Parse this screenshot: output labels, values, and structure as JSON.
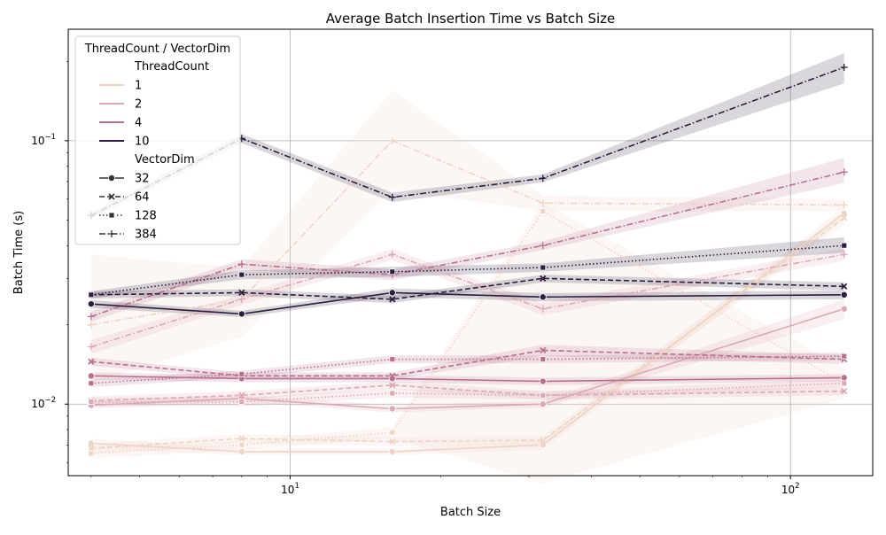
{
  "chart_data": {
    "type": "line",
    "title": "Average Batch Insertion Time vs Batch Size",
    "xlabel": "Batch Size",
    "ylabel": "Batch Time (s)",
    "xscale": "log",
    "yscale": "log",
    "xlim": [
      3.6,
      146
    ],
    "ylim": [
      0.00535,
      0.265
    ],
    "x_ticks": [
      {
        "value": 10,
        "label": "10",
        "base": "10",
        "exp": "1"
      },
      {
        "value": 100,
        "label": "100",
        "base": "10",
        "exp": "2"
      }
    ],
    "y_ticks": [
      {
        "value": 0.01,
        "label": "0.01",
        "base": "10",
        "exp": "−2"
      },
      {
        "value": 0.1,
        "label": "0.1",
        "base": "10",
        "exp": "−1"
      }
    ],
    "grid": true,
    "legend": {
      "title": "ThreadCount / VectorDim",
      "placement": "top-left",
      "hue_title": "ThreadCount",
      "hue_entries": [
        {
          "label": "1",
          "color": "#eed4c5"
        },
        {
          "label": "2",
          "color": "#dba9b4"
        },
        {
          "label": "4",
          "color": "#b7718f"
        },
        {
          "label": "10",
          "color": "#2d1e3e"
        }
      ],
      "style_title": "VectorDim",
      "style_entries": [
        {
          "label": "32",
          "dash": "solid",
          "marker": "circle"
        },
        {
          "label": "64",
          "dash": "dashed",
          "marker": "x"
        },
        {
          "label": "128",
          "dash": "dotted",
          "marker": "square"
        },
        {
          "label": "384",
          "dash": "dashdot",
          "marker": "plus"
        }
      ]
    },
    "x": [
      4,
      8,
      16,
      32,
      128
    ],
    "series": [
      {
        "thread_count": "1",
        "vector_dim": "32",
        "values": [
          0.0071,
          0.0066,
          0.0066,
          0.007,
          0.053
        ],
        "ci_low": [
          0.0068,
          0.0064,
          0.0064,
          0.0067,
          0.05
        ],
        "ci_high": [
          0.0074,
          0.0068,
          0.0068,
          0.0073,
          0.056
        ]
      },
      {
        "thread_count": "1",
        "vector_dim": "64",
        "values": [
          0.0068,
          0.0074,
          0.0072,
          0.0073,
          0.051
        ],
        "ci_low": [
          0.0065,
          0.0071,
          0.0069,
          0.007,
          0.048
        ],
        "ci_high": [
          0.0071,
          0.0077,
          0.0075,
          0.0076,
          0.054
        ]
      },
      {
        "thread_count": "1",
        "vector_dim": "128",
        "values": [
          0.0065,
          0.007,
          0.0078,
          0.054,
          0.012
        ],
        "ci_low": [
          0.0062,
          0.0067,
          0.0074,
          0.005,
          0.0105
        ],
        "ci_high": [
          0.0068,
          0.0073,
          0.0082,
          0.058,
          0.0138
        ]
      },
      {
        "thread_count": "1",
        "vector_dim": "384",
        "values": [
          0.02,
          0.025,
          0.1,
          0.058,
          0.057
        ],
        "ci_low": [
          0.012,
          0.018,
          0.065,
          0.054,
          0.054
        ],
        "ci_high": [
          0.037,
          0.033,
          0.155,
          0.062,
          0.06
        ]
      },
      {
        "thread_count": "2",
        "vector_dim": "32",
        "values": [
          0.0099,
          0.0105,
          0.0096,
          0.01,
          0.023
        ],
        "ci_low": [
          0.0096,
          0.0102,
          0.0093,
          0.0097,
          0.021
        ],
        "ci_high": [
          0.0102,
          0.0108,
          0.0099,
          0.0103,
          0.025
        ]
      },
      {
        "thread_count": "2",
        "vector_dim": "64",
        "values": [
          0.0103,
          0.0108,
          0.0118,
          0.0108,
          0.0112
        ],
        "ci_low": [
          0.0099,
          0.0104,
          0.0114,
          0.0104,
          0.0108
        ],
        "ci_high": [
          0.0107,
          0.0112,
          0.0122,
          0.0112,
          0.0116
        ]
      },
      {
        "thread_count": "2",
        "vector_dim": "128",
        "values": [
          0.0102,
          0.0102,
          0.011,
          0.0108,
          0.012
        ],
        "ci_low": [
          0.0098,
          0.0098,
          0.0106,
          0.0104,
          0.0116
        ],
        "ci_high": [
          0.0106,
          0.0106,
          0.0114,
          0.0112,
          0.0124
        ]
      },
      {
        "thread_count": "2",
        "vector_dim": "384",
        "values": [
          0.0165,
          0.025,
          0.037,
          0.023,
          0.037
        ],
        "ci_low": [
          0.0155,
          0.0238,
          0.0352,
          0.0218,
          0.035
        ],
        "ci_high": [
          0.0175,
          0.0262,
          0.0388,
          0.0242,
          0.039
        ]
      },
      {
        "thread_count": "4",
        "vector_dim": "32",
        "values": [
          0.0128,
          0.0125,
          0.0125,
          0.0122,
          0.0126
        ],
        "ci_low": [
          0.0124,
          0.0121,
          0.0121,
          0.0118,
          0.0122
        ],
        "ci_high": [
          0.0132,
          0.0129,
          0.0129,
          0.0126,
          0.013
        ]
      },
      {
        "thread_count": "4",
        "vector_dim": "64",
        "values": [
          0.0145,
          0.0128,
          0.0128,
          0.016,
          0.0148
        ],
        "ci_low": [
          0.014,
          0.0124,
          0.0124,
          0.0152,
          0.0142
        ],
        "ci_high": [
          0.015,
          0.0132,
          0.0132,
          0.0168,
          0.0154
        ]
      },
      {
        "thread_count": "4",
        "vector_dim": "128",
        "values": [
          0.012,
          0.013,
          0.0148,
          0.0148,
          0.0152
        ],
        "ci_low": [
          0.0116,
          0.0126,
          0.0143,
          0.0143,
          0.0147
        ],
        "ci_high": [
          0.0124,
          0.0134,
          0.0153,
          0.0153,
          0.0157
        ]
      },
      {
        "thread_count": "4",
        "vector_dim": "384",
        "values": [
          0.0215,
          0.034,
          0.031,
          0.04,
          0.076
        ],
        "ci_low": [
          0.0205,
          0.0325,
          0.0295,
          0.0385,
          0.069
        ],
        "ci_high": [
          0.0225,
          0.0355,
          0.0325,
          0.0415,
          0.086
        ]
      },
      {
        "thread_count": "10",
        "vector_dim": "32",
        "values": [
          0.024,
          0.022,
          0.0265,
          0.0255,
          0.026
        ],
        "ci_low": [
          0.0232,
          0.0214,
          0.0255,
          0.0246,
          0.025
        ],
        "ci_high": [
          0.0248,
          0.0226,
          0.0275,
          0.0264,
          0.027
        ]
      },
      {
        "thread_count": "10",
        "vector_dim": "64",
        "values": [
          0.026,
          0.0265,
          0.025,
          0.03,
          0.028
        ],
        "ci_low": [
          0.0252,
          0.0257,
          0.0242,
          0.029,
          0.027
        ],
        "ci_high": [
          0.0268,
          0.0273,
          0.0258,
          0.031,
          0.029
        ]
      },
      {
        "thread_count": "10",
        "vector_dim": "128",
        "values": [
          0.026,
          0.031,
          0.0318,
          0.033,
          0.04
        ],
        "ci_low": [
          0.0252,
          0.0298,
          0.0304,
          0.0318,
          0.0375
        ],
        "ci_high": [
          0.0268,
          0.0322,
          0.0332,
          0.0342,
          0.043
        ]
      },
      {
        "thread_count": "10",
        "vector_dim": "384",
        "values": [
          0.052,
          0.102,
          0.061,
          0.072,
          0.19
        ],
        "ci_low": [
          0.0505,
          0.098,
          0.0585,
          0.0695,
          0.165
        ],
        "ci_high": [
          0.0535,
          0.106,
          0.0635,
          0.0745,
          0.215
        ]
      }
    ]
  }
}
